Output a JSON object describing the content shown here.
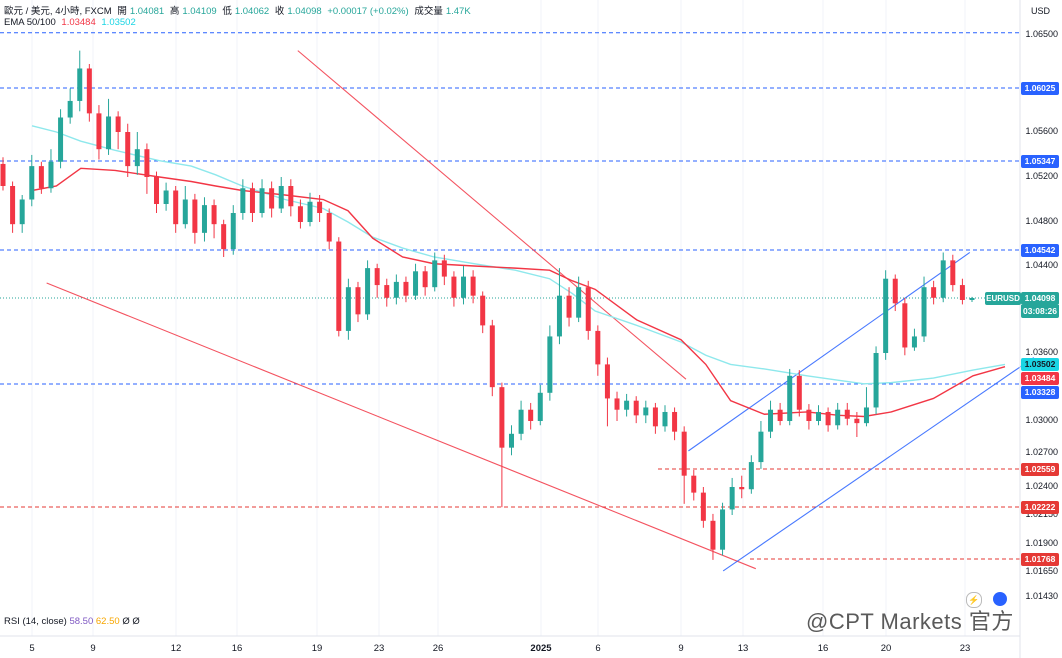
{
  "header": {
    "symbol_line": "歐元 / 美元, 4小時, FXCM",
    "open_label": "開",
    "open": "1.04081",
    "high_label": "高",
    "high": "1.04109",
    "low_label": "低",
    "low": "1.04062",
    "close_label": "收",
    "close": "1.04098",
    "change": "+0.00017 (+0.02%)",
    "volume_label": "成交量",
    "volume": "1.47K",
    "ema_label": "EMA 50/100",
    "ema50": "1.03484",
    "ema100": "1.03502"
  },
  "currency": "USD",
  "symbol_tag": "EURUSD",
  "countdown": "03:08:26",
  "rsi": {
    "label": "RSI (14, close)",
    "v1": "58.50",
    "v2": "62.50",
    "v3": "Ø",
    "v4": "Ø"
  },
  "watermark": "@CPT Markets 官方",
  "colors": {
    "up": "#26a69a",
    "down": "#f23645",
    "ema50": "#f23645",
    "ema100": "#8ee8ec",
    "level": "#2962ff",
    "support": "#e53935",
    "channel": "#2962ff"
  },
  "chart_data": {
    "type": "candlestick",
    "title": "歐元 / 美元, 4小時, FXCM",
    "y_ticks": [
      "1.06500",
      "1.05600",
      "1.05200",
      "1.04800",
      "1.04400",
      "1.03600",
      "1.03000",
      "1.02700",
      "1.02400",
      "1.02150",
      "1.01900",
      "1.01650",
      "1.01430"
    ],
    "x_ticks": [
      "5",
      "9",
      "12",
      "16",
      "19",
      "23",
      "26",
      "2025",
      "6",
      "9",
      "13",
      "16",
      "20",
      "23"
    ],
    "price_tags": [
      {
        "value": "1.06025",
        "style": "level"
      },
      {
        "value": "1.05347",
        "style": "level"
      },
      {
        "value": "1.04542",
        "style": "level"
      },
      {
        "value": "1.04098",
        "style": "price"
      },
      {
        "value": "1.03502",
        "style": "ema100"
      },
      {
        "value": "1.03484",
        "style": "ema50"
      },
      {
        "value": "1.03328",
        "style": "level"
      },
      {
        "value": "1.02559",
        "style": "support"
      },
      {
        "value": "1.02222",
        "style": "support"
      },
      {
        "value": "1.01768",
        "style": "support"
      }
    ],
    "horizontal_levels": [
      {
        "value": 1.0652,
        "style": "level"
      },
      {
        "value": 1.06025,
        "style": "level"
      },
      {
        "value": 1.05347,
        "style": "level"
      },
      {
        "value": 1.04542,
        "style": "level"
      },
      {
        "value": 1.03328,
        "style": "level"
      },
      {
        "value": 1.02559,
        "style": "support",
        "from": "2025-01-06"
      },
      {
        "value": 1.02222,
        "style": "support"
      },
      {
        "value": 1.01768,
        "style": "support",
        "from": "2025-01-13"
      },
      {
        "value": 1.04098,
        "style": "price"
      }
    ],
    "trendlines": [
      {
        "color": "down",
        "from": [
          8.3,
          1.0636
        ],
        "to": [
          20.2,
          1.0337
        ]
      },
      {
        "color": "down",
        "from": [
          0.6,
          1.0424
        ],
        "to": [
          22.8,
          1.0168
        ]
      },
      {
        "color": "channel",
        "from": [
          20.3,
          1.0272
        ],
        "to": [
          28.9,
          1.0452
        ]
      },
      {
        "color": "channel",
        "from": [
          21.7,
          1.0166
        ],
        "to": [
          30.9,
          1.0356
        ]
      }
    ],
    "ema50": [
      [
        0,
        1.0508
      ],
      [
        1,
        1.0512
      ],
      [
        2,
        1.0528
      ],
      [
        3,
        1.0526
      ],
      [
        4,
        1.052
      ],
      [
        5,
        1.0516
      ],
      [
        6,
        1.0512
      ],
      [
        7,
        1.0508
      ],
      [
        8,
        1.0504
      ],
      [
        9,
        1.05
      ],
      [
        10,
        1.049
      ],
      [
        11,
        1.0465
      ],
      [
        12,
        1.0448
      ],
      [
        13,
        1.0442
      ],
      [
        14,
        1.044
      ],
      [
        15,
        1.0438
      ],
      [
        16,
        1.0436
      ],
      [
        17,
        1.0426
      ],
      [
        18,
        1.0418
      ],
      [
        19,
        1.039
      ],
      [
        20,
        1.0372
      ],
      [
        21,
        1.035
      ],
      [
        22,
        1.0318
      ],
      [
        23,
        1.0306
      ],
      [
        24,
        1.0308
      ],
      [
        25,
        1.0305
      ],
      [
        26,
        1.0304
      ],
      [
        27,
        1.0308
      ],
      [
        28,
        1.032
      ],
      [
        29,
        1.034
      ],
      [
        30,
        1.0348
      ]
    ],
    "ema100": [
      [
        0,
        1.0566
      ],
      [
        1,
        1.056
      ],
      [
        2,
        1.0552
      ],
      [
        3,
        1.0544
      ],
      [
        4,
        1.0535
      ],
      [
        5,
        1.053
      ],
      [
        6,
        1.0522
      ],
      [
        7,
        1.0512
      ],
      [
        8,
        1.05
      ],
      [
        9,
        1.0492
      ],
      [
        10,
        1.048
      ],
      [
        11,
        1.0466
      ],
      [
        12,
        1.0456
      ],
      [
        13,
        1.0448
      ],
      [
        14,
        1.0442
      ],
      [
        15,
        1.0436
      ],
      [
        16,
        1.0428
      ],
      [
        17,
        1.0414
      ],
      [
        18,
        1.0398
      ],
      [
        19,
        1.0385
      ],
      [
        20,
        1.037
      ],
      [
        21,
        1.0358
      ],
      [
        22,
        1.035
      ],
      [
        23,
        1.0346
      ],
      [
        24,
        1.034
      ],
      [
        25,
        1.0336
      ],
      [
        26,
        1.0333
      ],
      [
        27,
        1.0334
      ],
      [
        28,
        1.0338
      ],
      [
        29,
        1.0345
      ],
      [
        30,
        1.035
      ]
    ],
    "candles": [
      [
        1.0532,
        1.0512,
        1.0538,
        1.0508
      ],
      [
        1.0512,
        1.0478,
        1.0516,
        1.047
      ],
      [
        1.0478,
        1.05,
        1.0504,
        1.047
      ],
      [
        1.05,
        1.053,
        1.054,
        1.0494
      ],
      [
        1.053,
        1.051,
        1.0534,
        1.0505
      ],
      [
        1.051,
        1.0534,
        1.0545,
        1.0506
      ],
      [
        1.0534,
        1.0574,
        1.0582,
        1.0528
      ],
      [
        1.0574,
        1.059,
        1.0602,
        1.0568
      ],
      [
        1.059,
        1.062,
        1.0636,
        1.058
      ],
      [
        1.062,
        1.0578,
        1.0624,
        1.057
      ],
      [
        1.0578,
        1.0545,
        1.0586,
        1.0536
      ],
      [
        1.0545,
        1.0575,
        1.0592,
        1.054
      ],
      [
        1.0575,
        1.056,
        1.058,
        1.0545
      ],
      [
        1.056,
        1.053,
        1.0568,
        1.052
      ],
      [
        1.053,
        1.0545,
        1.056,
        1.0522
      ],
      [
        1.0545,
        1.052,
        1.055,
        1.0505
      ],
      [
        1.052,
        1.0496,
        1.0525,
        1.0488
      ],
      [
        1.0496,
        1.0508,
        1.0515,
        1.049
      ],
      [
        1.0508,
        1.0478,
        1.0512,
        1.047
      ],
      [
        1.0478,
        1.05,
        1.0512,
        1.0474
      ],
      [
        1.05,
        1.047,
        1.0505,
        1.046
      ],
      [
        1.047,
        1.0495,
        1.0502,
        1.0462
      ],
      [
        1.0495,
        1.0478,
        1.05,
        1.0465
      ],
      [
        1.0478,
        1.0455,
        1.0482,
        1.0448
      ],
      [
        1.0455,
        1.0488,
        1.0495,
        1.045
      ],
      [
        1.0488,
        1.051,
        1.0518,
        1.0482
      ],
      [
        1.051,
        1.0488,
        1.0515,
        1.048
      ],
      [
        1.0488,
        1.051,
        1.0518,
        1.0484
      ],
      [
        1.051,
        1.0492,
        1.0516,
        1.0484
      ],
      [
        1.0492,
        1.0512,
        1.052,
        1.0488
      ],
      [
        1.0512,
        1.0494,
        1.0518,
        1.0485
      ],
      [
        1.0494,
        1.048,
        1.05,
        1.0474
      ],
      [
        1.048,
        1.0498,
        1.0506,
        1.0476
      ],
      [
        1.0498,
        1.0488,
        1.0504,
        1.048
      ],
      [
        1.0488,
        1.0462,
        1.0492,
        1.0455
      ],
      [
        1.0462,
        1.038,
        1.0466,
        1.0375
      ],
      [
        1.038,
        1.042,
        1.0428,
        1.0372
      ],
      [
        1.042,
        1.0395,
        1.0425,
        1.0388
      ],
      [
        1.0395,
        1.0438,
        1.0445,
        1.039
      ],
      [
        1.0438,
        1.0422,
        1.0442,
        1.041
      ],
      [
        1.0422,
        1.041,
        1.0428,
        1.0402
      ],
      [
        1.041,
        1.0425,
        1.0432,
        1.0404
      ],
      [
        1.0425,
        1.0412,
        1.043,
        1.0406
      ],
      [
        1.0412,
        1.0435,
        1.0442,
        1.0408
      ],
      [
        1.0435,
        1.042,
        1.044,
        1.0412
      ],
      [
        1.042,
        1.0445,
        1.0452,
        1.0416
      ],
      [
        1.0445,
        1.043,
        1.045,
        1.0422
      ],
      [
        1.043,
        1.041,
        1.0435,
        1.0402
      ],
      [
        1.041,
        1.043,
        1.044,
        1.0404
      ],
      [
        1.043,
        1.0412,
        1.0436,
        1.0405
      ],
      [
        1.0412,
        1.0385,
        1.0416,
        1.0378
      ],
      [
        1.0385,
        1.033,
        1.039,
        1.0322
      ],
      [
        1.033,
        1.0275,
        1.0334,
        1.0222
      ],
      [
        1.0275,
        1.0288,
        1.0296,
        1.0268
      ],
      [
        1.0288,
        1.031,
        1.0318,
        1.0282
      ],
      [
        1.031,
        1.03,
        1.0316,
        1.0292
      ],
      [
        1.03,
        1.0325,
        1.0332,
        1.0296
      ],
      [
        1.0325,
        1.0375,
        1.0385,
        1.0318
      ],
      [
        1.0375,
        1.0412,
        1.0438,
        1.0368
      ],
      [
        1.0412,
        1.0392,
        1.042,
        1.0384
      ],
      [
        1.0392,
        1.042,
        1.043,
        1.0388
      ],
      [
        1.042,
        1.038,
        1.0426,
        1.0372
      ],
      [
        1.038,
        1.035,
        1.0385,
        1.034
      ],
      [
        1.035,
        1.032,
        1.0356,
        1.0295
      ],
      [
        1.032,
        1.031,
        1.0326,
        1.03
      ],
      [
        1.031,
        1.0318,
        1.0324,
        1.0304
      ],
      [
        1.0318,
        1.0305,
        1.0322,
        1.0298
      ],
      [
        1.0305,
        1.0312,
        1.0318,
        1.0298
      ],
      [
        1.0312,
        1.0295,
        1.0316,
        1.0288
      ],
      [
        1.0295,
        1.0308,
        1.0314,
        1.029
      ],
      [
        1.0308,
        1.029,
        1.0312,
        1.0282
      ],
      [
        1.029,
        1.025,
        1.0295,
        1.0225
      ],
      [
        1.025,
        1.0235,
        1.0255,
        1.0228
      ],
      [
        1.0235,
        1.021,
        1.024,
        1.0204
      ],
      [
        1.021,
        1.0185,
        1.0216,
        1.0176
      ],
      [
        1.0185,
        1.022,
        1.0226,
        1.018
      ],
      [
        1.022,
        1.024,
        1.0248,
        1.0215
      ],
      [
        1.024,
        1.0238,
        1.025,
        1.023
      ],
      [
        1.0238,
        1.0262,
        1.0268,
        1.0234
      ],
      [
        1.0262,
        1.029,
        1.03,
        1.0256
      ],
      [
        1.029,
        1.031,
        1.0318,
        1.0284
      ],
      [
        1.031,
        1.03,
        1.0316,
        1.0296
      ],
      [
        1.03,
        1.034,
        1.0346,
        1.0296
      ],
      [
        1.034,
        1.031,
        1.0345,
        1.0304
      ],
      [
        1.031,
        1.03,
        1.0315,
        1.0292
      ],
      [
        1.03,
        1.0308,
        1.0314,
        1.0296
      ],
      [
        1.0308,
        1.0296,
        1.0312,
        1.029
      ],
      [
        1.0296,
        1.031,
        1.0316,
        1.0292
      ],
      [
        1.031,
        1.0302,
        1.0316,
        1.0296
      ],
      [
        1.0302,
        1.0298,
        1.0308,
        1.0285
      ],
      [
        1.0298,
        1.0312,
        1.033,
        1.0295
      ],
      [
        1.0312,
        1.036,
        1.0366,
        1.0306
      ],
      [
        1.036,
        1.0428,
        1.0436,
        1.0354
      ],
      [
        1.0428,
        1.0405,
        1.0432,
        1.0398
      ],
      [
        1.0405,
        1.0365,
        1.041,
        1.0358
      ],
      [
        1.0365,
        1.0375,
        1.0382,
        1.0362
      ],
      [
        1.0375,
        1.042,
        1.043,
        1.037
      ],
      [
        1.042,
        1.041,
        1.0426,
        1.0404
      ],
      [
        1.041,
        1.0445,
        1.0452,
        1.0406
      ],
      [
        1.0445,
        1.0422,
        1.045,
        1.0416
      ],
      [
        1.0422,
        1.0408,
        1.0428,
        1.0404
      ],
      [
        1.0408,
        1.04098,
        1.04109,
        1.04062
      ]
    ]
  }
}
